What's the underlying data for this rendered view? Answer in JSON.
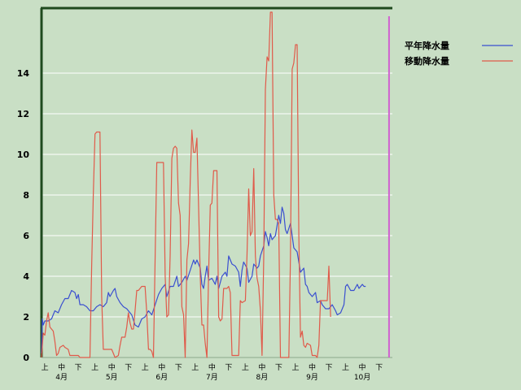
{
  "colors": {
    "background": "#c9dfc5",
    "grid": "#ffffff",
    "axis": "#1e4a1e",
    "normal_series": "#3a4fd0",
    "moving_series": "#e05a4a",
    "marker": "#d060d0"
  },
  "chart_data": {
    "type": "line",
    "ylim": [
      0,
      17.2
    ],
    "yticks": [
      0,
      2,
      4,
      6,
      8,
      10,
      12,
      14
    ],
    "xlim": [
      0,
      210
    ],
    "grid": true,
    "legend_position": "top-right",
    "period_labels": [
      "上",
      "中",
      "下"
    ],
    "months": [
      "4月",
      "5月",
      "6月",
      "7月",
      "8月",
      "9月",
      "10月"
    ],
    "current_day_marker": 208,
    "series": [
      {
        "name": "平年降水量",
        "color": "#3a4fd0",
        "points": [
          [
            0,
            0.2
          ],
          [
            0.5,
            1.9
          ],
          [
            1,
            1.6
          ],
          [
            2,
            1.8
          ],
          [
            4,
            1.8
          ],
          [
            6,
            1.9
          ],
          [
            8,
            2.3
          ],
          [
            10,
            2.2
          ],
          [
            12,
            2.6
          ],
          [
            14,
            2.9
          ],
          [
            16,
            2.9
          ],
          [
            18,
            3.3
          ],
          [
            20,
            3.2
          ],
          [
            21,
            2.9
          ],
          [
            22,
            3.1
          ],
          [
            23,
            2.6
          ],
          [
            25,
            2.6
          ],
          [
            27,
            2.5
          ],
          [
            29,
            2.3
          ],
          [
            31,
            2.3
          ],
          [
            33,
            2.5
          ],
          [
            35,
            2.6
          ],
          [
            37,
            2.5
          ],
          [
            39,
            2.7
          ],
          [
            40,
            3.2
          ],
          [
            41,
            3.0
          ],
          [
            43,
            3.3
          ],
          [
            44,
            3.4
          ],
          [
            45,
            3.0
          ],
          [
            47,
            2.7
          ],
          [
            49,
            2.5
          ],
          [
            51,
            2.4
          ],
          [
            52,
            2.3
          ],
          [
            54,
            2.1
          ],
          [
            56,
            1.6
          ],
          [
            58,
            1.5
          ],
          [
            60,
            1.9
          ],
          [
            62,
            2.0
          ],
          [
            64,
            2.3
          ],
          [
            66,
            2.1
          ],
          [
            68,
            2.6
          ],
          [
            70,
            3.1
          ],
          [
            72,
            3.4
          ],
          [
            74,
            3.6
          ],
          [
            75,
            3.0
          ],
          [
            77,
            3.5
          ],
          [
            79,
            3.5
          ],
          [
            81,
            4.0
          ],
          [
            82,
            3.5
          ],
          [
            84,
            3.7
          ],
          [
            86,
            4.0
          ],
          [
            87,
            3.8
          ],
          [
            89,
            4.3
          ],
          [
            91,
            4.8
          ],
          [
            92,
            4.6
          ],
          [
            93,
            4.8
          ],
          [
            95,
            4.4
          ],
          [
            96,
            3.6
          ],
          [
            97,
            3.4
          ],
          [
            98,
            4.0
          ],
          [
            99,
            4.5
          ],
          [
            100,
            3.8
          ],
          [
            102,
            3.9
          ],
          [
            104,
            3.6
          ],
          [
            105,
            4.0
          ],
          [
            106,
            3.4
          ],
          [
            108,
            4.0
          ],
          [
            110,
            4.2
          ],
          [
            111,
            4.0
          ],
          [
            112,
            5.0
          ],
          [
            114,
            4.6
          ],
          [
            116,
            4.5
          ],
          [
            118,
            4.2
          ],
          [
            119,
            3.5
          ],
          [
            120,
            4.3
          ],
          [
            121,
            4.7
          ],
          [
            123,
            4.4
          ],
          [
            124,
            3.7
          ],
          [
            126,
            4.0
          ],
          [
            127,
            4.6
          ],
          [
            129,
            4.4
          ],
          [
            130,
            4.5
          ],
          [
            131,
            5.0
          ],
          [
            133,
            5.5
          ],
          [
            134,
            6.2
          ],
          [
            135,
            5.9
          ],
          [
            136,
            5.5
          ],
          [
            137,
            6.1
          ],
          [
            138,
            5.8
          ],
          [
            140,
            6.0
          ],
          [
            141,
            6.5
          ],
          [
            142,
            7.0
          ],
          [
            143,
            6.6
          ],
          [
            144,
            7.4
          ],
          [
            145,
            7.1
          ],
          [
            146,
            6.3
          ],
          [
            147,
            6.1
          ],
          [
            149,
            6.6
          ],
          [
            150,
            6.0
          ],
          [
            151,
            5.4
          ],
          [
            153,
            5.2
          ],
          [
            154,
            4.7
          ],
          [
            155,
            4.2
          ],
          [
            157,
            4.4
          ],
          [
            158,
            3.6
          ],
          [
            159,
            3.5
          ],
          [
            160,
            3.2
          ],
          [
            162,
            3.0
          ],
          [
            164,
            3.2
          ],
          [
            165,
            2.7
          ],
          [
            167,
            2.8
          ],
          [
            168,
            2.6
          ],
          [
            170,
            2.4
          ],
          [
            172,
            2.4
          ],
          [
            174,
            2.6
          ],
          [
            176,
            2.3
          ],
          [
            177,
            2.1
          ],
          [
            179,
            2.2
          ],
          [
            181,
            2.6
          ],
          [
            182,
            3.5
          ],
          [
            183,
            3.6
          ],
          [
            185,
            3.3
          ],
          [
            187,
            3.3
          ],
          [
            189,
            3.6
          ],
          [
            190,
            3.4
          ],
          [
            192,
            3.6
          ],
          [
            193,
            3.5
          ],
          [
            194,
            3.5
          ]
        ]
      },
      {
        "name": "移動降水量",
        "color": "#e05a4a",
        "points": [
          [
            0,
            0
          ],
          [
            1,
            1.2
          ],
          [
            2,
            1.1
          ],
          [
            3,
            1.8
          ],
          [
            4,
            2.2
          ],
          [
            5,
            1.5
          ],
          [
            6,
            1.4
          ],
          [
            7,
            1.3
          ],
          [
            8,
            0.8
          ],
          [
            9,
            0.1
          ],
          [
            10,
            0.2
          ],
          [
            11,
            0.5
          ],
          [
            13,
            0.6
          ],
          [
            14,
            0.5
          ],
          [
            16,
            0.4
          ],
          [
            17,
            0.1
          ],
          [
            19,
            0.1
          ],
          [
            22,
            0.1
          ],
          [
            23,
            0
          ],
          [
            27,
            0
          ],
          [
            29,
            0
          ],
          [
            30,
            4.5
          ],
          [
            31,
            8
          ],
          [
            32,
            11.0
          ],
          [
            33,
            11.1
          ],
          [
            35,
            11.1
          ],
          [
            36,
            3
          ],
          [
            37,
            0.4
          ],
          [
            40,
            0.4
          ],
          [
            42,
            0.4
          ],
          [
            43,
            0.2
          ],
          [
            44,
            0
          ],
          [
            46,
            0.1
          ],
          [
            47,
            0.6
          ],
          [
            48,
            1.0
          ],
          [
            50,
            1.0
          ],
          [
            51,
            1.5
          ],
          [
            52,
            2.2
          ],
          [
            53,
            1.7
          ],
          [
            54,
            1.4
          ],
          [
            55,
            1.4
          ],
          [
            56,
            2.3
          ],
          [
            57,
            3.3
          ],
          [
            58,
            3.3
          ],
          [
            60,
            3.5
          ],
          [
            62,
            3.5
          ],
          [
            63,
            2.2
          ],
          [
            64,
            0.4
          ],
          [
            65,
            0.4
          ],
          [
            66,
            0.3
          ],
          [
            67,
            0
          ],
          [
            68,
            5
          ],
          [
            69,
            9.6
          ],
          [
            71,
            9.6
          ],
          [
            73,
            9.6
          ],
          [
            74,
            4
          ],
          [
            75,
            2.0
          ],
          [
            76,
            2.1
          ],
          [
            77,
            5
          ],
          [
            78,
            9.8
          ],
          [
            79,
            10.3
          ],
          [
            80,
            10.4
          ],
          [
            81,
            10.3
          ],
          [
            82,
            7.6
          ],
          [
            83,
            7.0
          ],
          [
            84,
            2.5
          ],
          [
            85,
            2.1
          ],
          [
            86,
            0
          ],
          [
            87,
            4.8
          ],
          [
            88,
            5.6
          ],
          [
            89,
            8.7
          ],
          [
            90,
            11.2
          ],
          [
            91,
            10.1
          ],
          [
            92,
            10.1
          ],
          [
            93,
            10.8
          ],
          [
            94,
            7.5
          ],
          [
            95,
            4
          ],
          [
            96,
            1.6
          ],
          [
            97,
            1.6
          ],
          [
            98,
            0.7
          ],
          [
            99,
            0
          ],
          [
            100,
            4
          ],
          [
            101,
            7.5
          ],
          [
            102,
            7.6
          ],
          [
            103,
            9.2
          ],
          [
            105,
            9.2
          ],
          [
            106,
            2
          ],
          [
            107,
            1.8
          ],
          [
            108,
            1.9
          ],
          [
            109,
            3.4
          ],
          [
            111,
            3.4
          ],
          [
            112,
            3.5
          ],
          [
            113,
            3.2
          ],
          [
            114,
            0.1
          ],
          [
            117,
            0.1
          ],
          [
            118,
            0.1
          ],
          [
            119,
            2.8
          ],
          [
            120,
            2.7
          ],
          [
            122,
            2.8
          ],
          [
            123,
            5
          ],
          [
            124,
            8.3
          ],
          [
            125,
            6
          ],
          [
            126,
            6.2
          ],
          [
            127,
            9.3
          ],
          [
            128,
            5
          ],
          [
            129,
            3.9
          ],
          [
            130,
            3.5
          ],
          [
            131,
            2.3
          ],
          [
            132,
            0.1
          ],
          [
            133,
            5
          ],
          [
            134,
            13.2
          ],
          [
            135,
            14.8
          ],
          [
            136,
            14.6
          ],
          [
            137,
            17.0
          ],
          [
            138,
            17.0
          ],
          [
            139,
            8
          ],
          [
            140,
            6.8
          ],
          [
            141,
            6.8
          ],
          [
            142,
            6.6
          ],
          [
            143,
            0
          ],
          [
            146,
            0
          ],
          [
            148,
            0
          ],
          [
            149,
            5
          ],
          [
            150,
            14.2
          ],
          [
            151,
            14.5
          ],
          [
            152,
            15.4
          ],
          [
            153,
            15.4
          ],
          [
            154,
            6
          ],
          [
            155,
            1.0
          ],
          [
            156,
            1.3
          ],
          [
            157,
            0.6
          ],
          [
            158,
            0.5
          ],
          [
            159,
            0.7
          ],
          [
            161,
            0.6
          ],
          [
            162,
            0.1
          ],
          [
            164,
            0.1
          ],
          [
            165,
            0
          ],
          [
            166,
            0.6
          ],
          [
            167,
            2.8
          ],
          [
            168,
            2.8
          ],
          [
            170,
            2.8
          ],
          [
            171,
            2.8
          ],
          [
            172,
            4.5
          ],
          [
            173,
            2.0
          ]
        ]
      }
    ]
  }
}
